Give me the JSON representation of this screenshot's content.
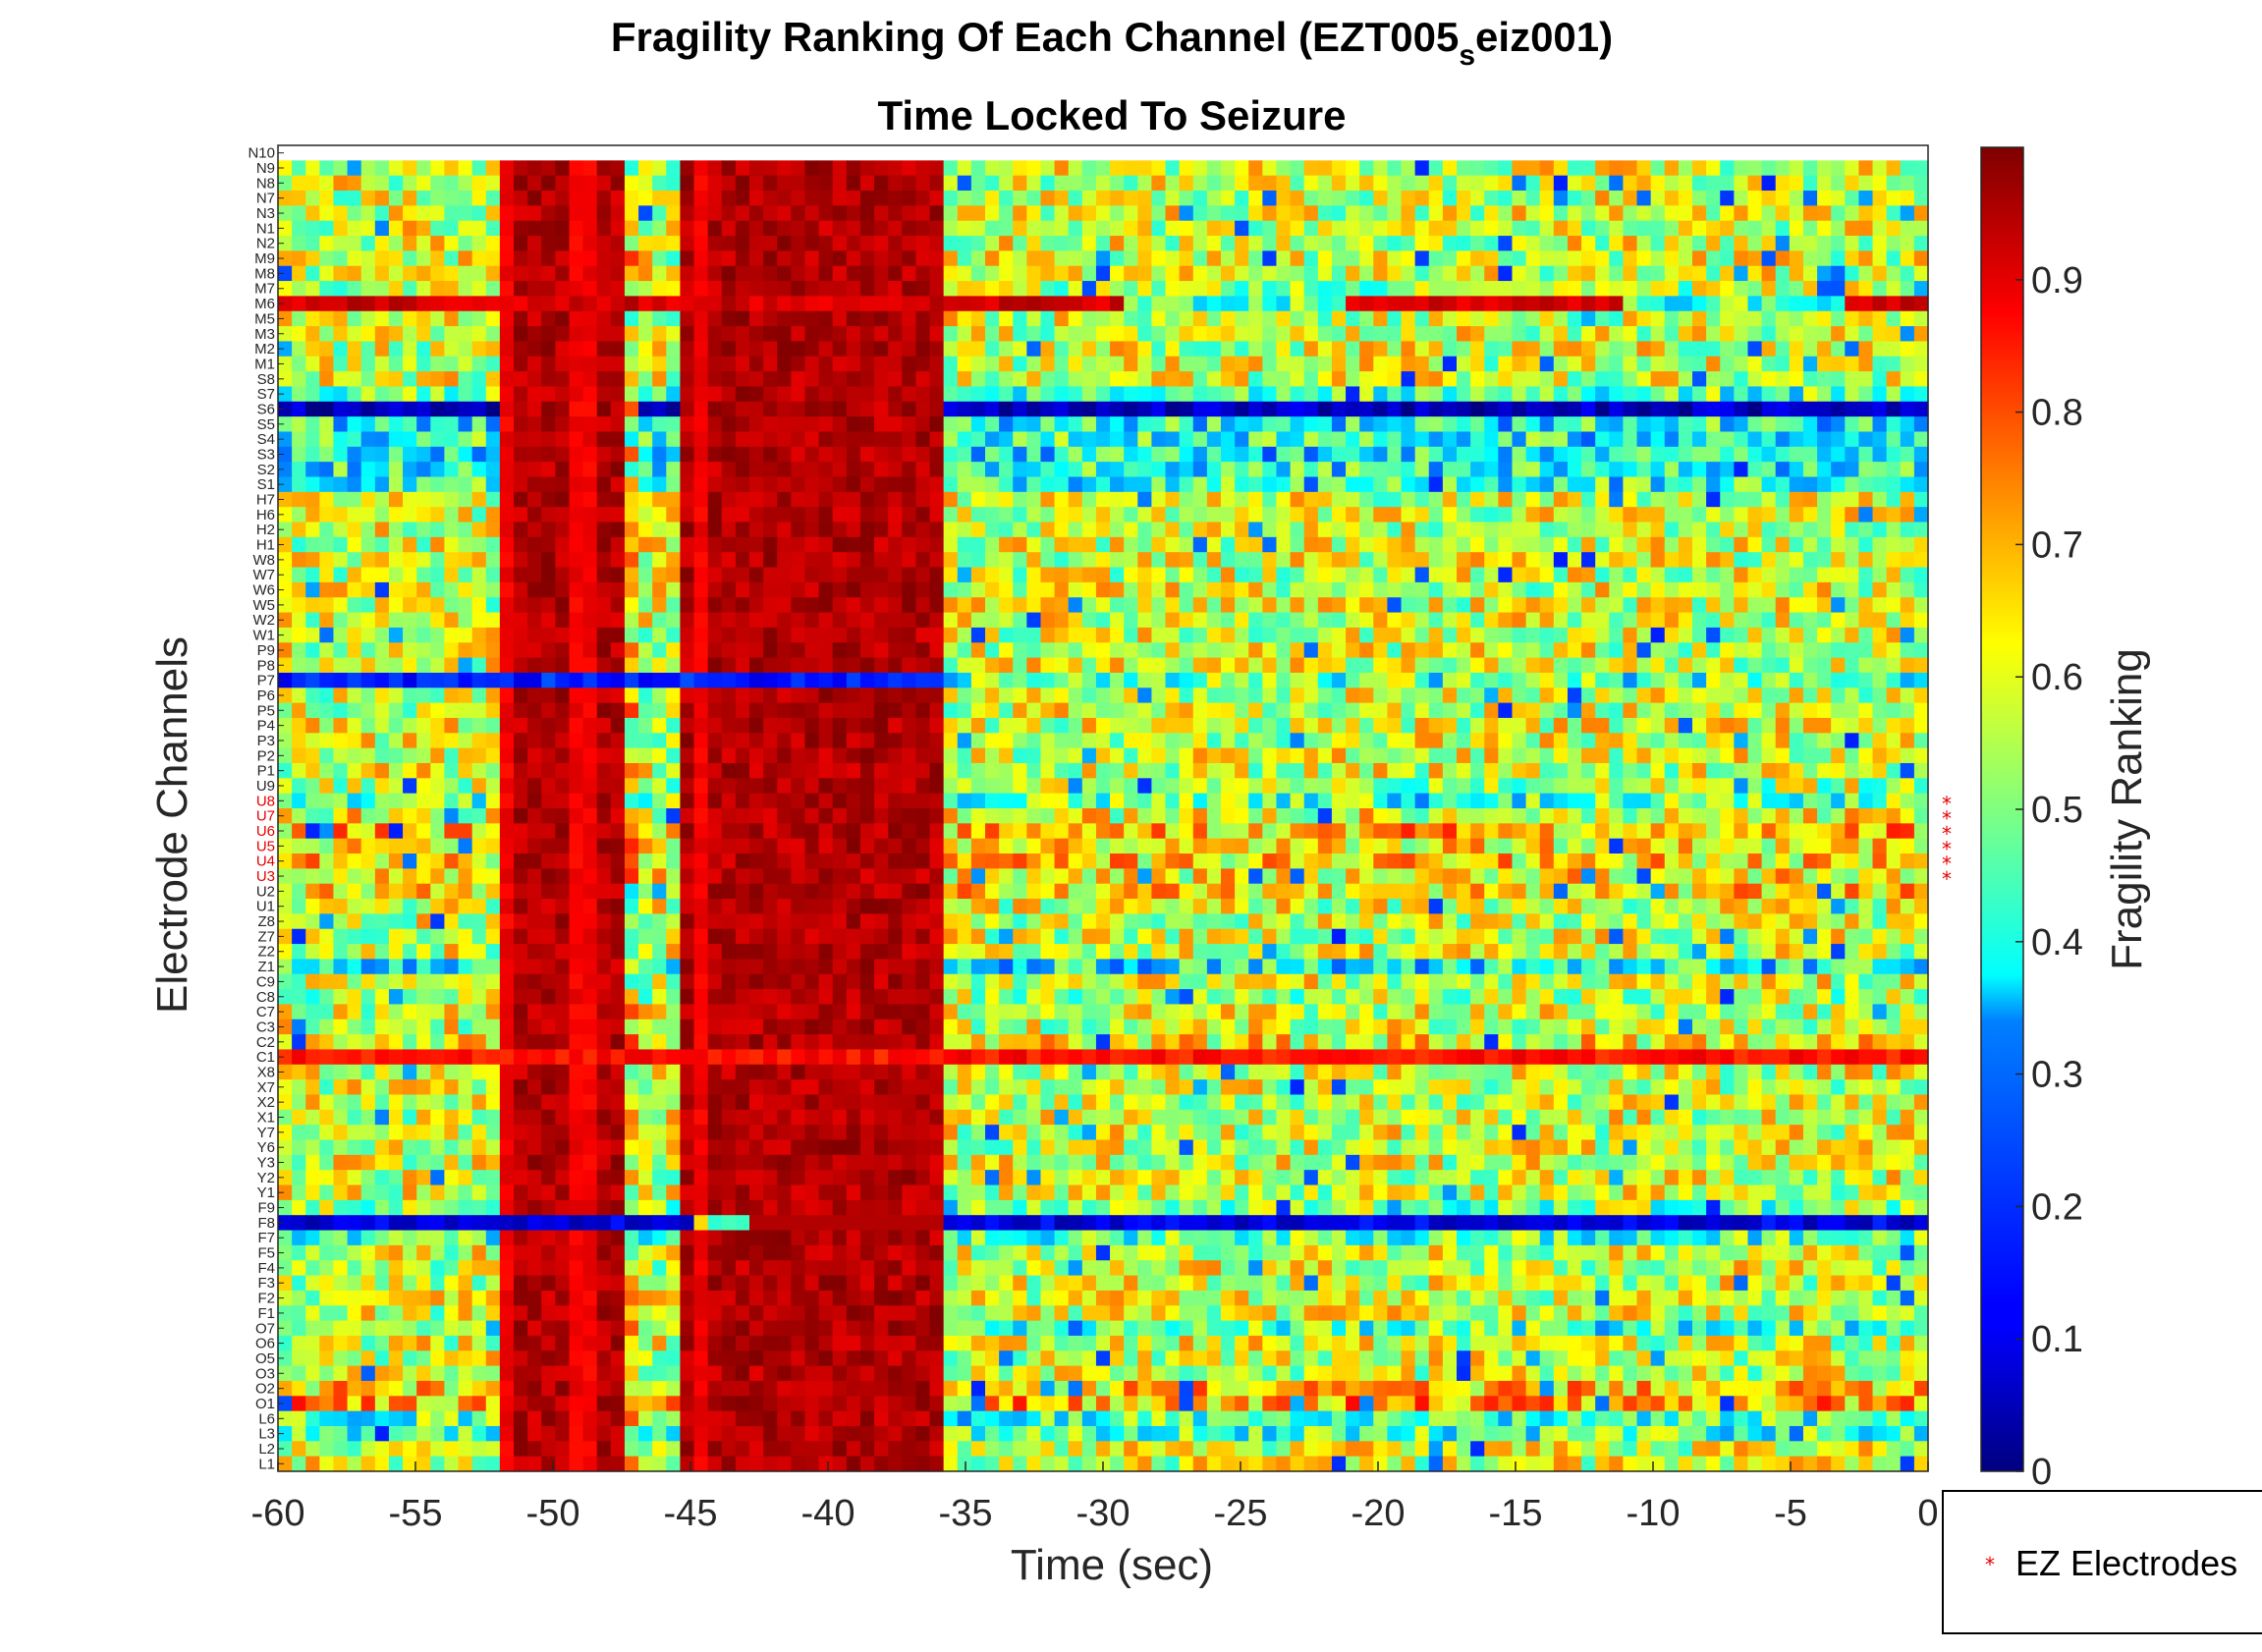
{
  "chart_data": {
    "type": "heatmap",
    "title": "Fragility Ranking Of Each Channel (EZT005",
    "title_subscript": "s",
    "title_suffix": "eiz001)",
    "subtitle": "Time Locked To Seizure",
    "xlabel": "Time (sec)",
    "ylabel": "Electrode Channels",
    "colorbar_label": "Fragility Ranking",
    "colormap": "jet",
    "xlim": [
      -60,
      0
    ],
    "clim": [
      0,
      1
    ],
    "x_ticks": [
      -60,
      -55,
      -50,
      -45,
      -40,
      -35,
      -30,
      -25,
      -20,
      -15,
      -10,
      -5,
      0
    ],
    "x_tick_labels": [
      "-60",
      "-55",
      "-50",
      "-45",
      "-40",
      "-35",
      "-30",
      "-25",
      "-20",
      "-15",
      "-10",
      "-5",
      "0"
    ],
    "colorbar_ticks": [
      "0",
      "0.1",
      "0.2",
      "0.3",
      "0.4",
      "0.5",
      "0.6",
      "0.7",
      "0.8",
      "0.9"
    ],
    "channels": [
      "N10",
      "N9",
      "N8",
      "N7",
      "N3",
      "N1",
      "N2",
      "M9",
      "M8",
      "M7",
      "M6",
      "M5",
      "M3",
      "M2",
      "M1",
      "S8",
      "S7",
      "S6",
      "S5",
      "S4",
      "S3",
      "S2",
      "S1",
      "H7",
      "H6",
      "H2",
      "H1",
      "W8",
      "W7",
      "W6",
      "W5",
      "W2",
      "W1",
      "P9",
      "P8",
      "P7",
      "P6",
      "P5",
      "P4",
      "P3",
      "P2",
      "P1",
      "U9",
      "U8",
      "U7",
      "U6",
      "U5",
      "U4",
      "U3",
      "U2",
      "U1",
      "Z8",
      "Z7",
      "Z2",
      "Z1",
      "C9",
      "C8",
      "C7",
      "C3",
      "C2",
      "C1",
      "X8",
      "X7",
      "X2",
      "X1",
      "Y7",
      "Y6",
      "Y3",
      "Y2",
      "Y1",
      "F9",
      "F8",
      "F7",
      "F5",
      "F4",
      "F3",
      "F2",
      "F1",
      "O7",
      "O6",
      "O5",
      "O3",
      "O2",
      "O1",
      "L6",
      "L3",
      "L2",
      "L1"
    ],
    "ez_channels": [
      "U8",
      "U7",
      "U6",
      "U5",
      "U4",
      "U3"
    ],
    "n_time_windows": 119,
    "high_fragility_bands_sec": [
      [
        -52,
        -47
      ],
      [
        -45.2,
        -36
      ]
    ],
    "high_fragility_channels": {
      "M6": 0.92,
      "C1": 0.86
    },
    "low_fragility_channels": {
      "S6": 0.06,
      "F8": 0.1,
      "P7": 0.15
    },
    "row_means": {
      "M7": 0.55,
      "S7": 0.45,
      "S5": 0.4,
      "S4": 0.42,
      "S3": 0.38,
      "S2": 0.4,
      "S1": 0.42,
      "U9": 0.55,
      "U8": 0.47,
      "U7": 0.6,
      "U6": 0.68,
      "U5": 0.62,
      "U4": 0.65,
      "U3": 0.62,
      "U2": 0.65,
      "Z1": 0.38,
      "C8": 0.55,
      "C2": 0.62,
      "F7": 0.45,
      "F9": 0.5,
      "O7": 0.45,
      "O2": 0.66,
      "O1": 0.7,
      "L6": 0.45,
      "L3": 0.45
    },
    "default_row_mean": 0.58,
    "legend": {
      "entries": [
        "EZ Electrodes"
      ],
      "placement": "bottom-right"
    }
  }
}
